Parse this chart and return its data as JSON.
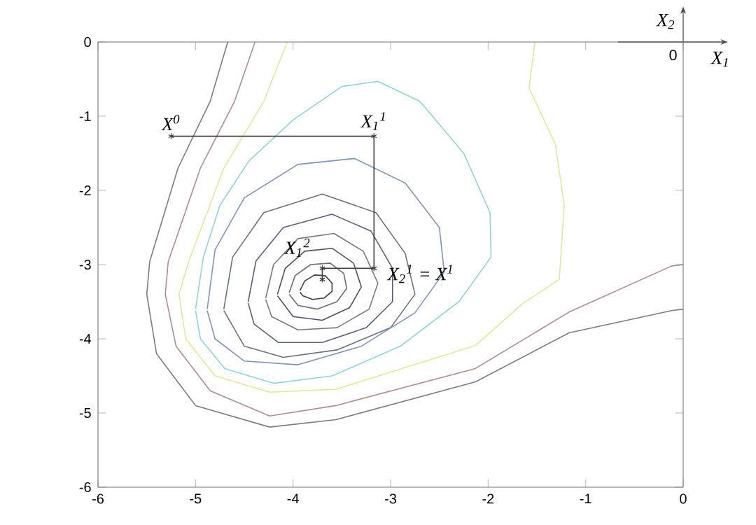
{
  "chart_data": {
    "type": "line",
    "xlabel": "X$_{1}$",
    "ylabel": "X$_{2}$",
    "xlim": [
      -6,
      0
    ],
    "ylim": [
      -6,
      0
    ],
    "xticks": [
      -6,
      -5,
      -4,
      -3,
      -2,
      -1,
      0
    ],
    "yticks": [
      -6,
      -5,
      -4,
      -3,
      -2,
      -1,
      0
    ],
    "marker": "none",
    "line_style": "solid",
    "series": [
      {
        "color": "#3c3c44",
        "x": [
          -3.93,
          -3.88,
          -3.78,
          -3.67,
          -3.6,
          -3.6,
          -3.68,
          -3.8,
          -3.9,
          -3.93
        ],
        "values": [
          -3.35,
          -3.22,
          -3.14,
          -3.15,
          -3.25,
          -3.36,
          -3.45,
          -3.47,
          -3.42,
          -3.37
        ]
      },
      {
        "color": "#6a6a72",
        "x": [
          -4.04,
          -3.98,
          -3.82,
          -3.62,
          -3.48,
          -3.45,
          -3.55,
          -3.75,
          -3.95,
          -4.04
        ],
        "values": [
          -3.38,
          -3.15,
          -3.0,
          -2.98,
          -3.12,
          -3.32,
          -3.5,
          -3.6,
          -3.55,
          -3.4
        ]
      },
      {
        "color": "#4a5266",
        "x": [
          -4.16,
          -4.08,
          -3.88,
          -3.6,
          -3.38,
          -3.3,
          -3.42,
          -3.7,
          -4.0,
          -4.16
        ],
        "values": [
          -3.4,
          -3.05,
          -2.82,
          -2.78,
          -2.98,
          -3.3,
          -3.58,
          -3.75,
          -3.7,
          -3.42
        ]
      },
      {
        "color": "#7a7a7a",
        "x": [
          -4.28,
          -4.2,
          -3.95,
          -3.58,
          -3.28,
          -3.13,
          -3.22,
          -3.55,
          -3.95,
          -4.22,
          -4.28
        ],
        "values": [
          -3.45,
          -3.0,
          -2.65,
          -2.58,
          -2.82,
          -3.25,
          -3.6,
          -3.85,
          -3.88,
          -3.7,
          -3.47
        ]
      },
      {
        "color": "#55607a",
        "x": [
          -4.46,
          -4.38,
          -4.1,
          -3.6,
          -3.2,
          -2.98,
          -2.98,
          -3.25,
          -3.7,
          -4.15,
          -4.4,
          -4.46
        ],
        "values": [
          -3.5,
          -2.95,
          -2.5,
          -2.32,
          -2.55,
          -3.05,
          -3.5,
          -3.85,
          -4.05,
          -4.05,
          -3.8,
          -3.52
        ]
      },
      {
        "color": "#6a7080",
        "x": [
          -4.71,
          -4.62,
          -4.3,
          -3.7,
          -3.15,
          -2.85,
          -2.75,
          -3.0,
          -3.55,
          -4.1,
          -4.5,
          -4.71
        ],
        "values": [
          -3.6,
          -2.9,
          -2.3,
          -2.05,
          -2.3,
          -2.85,
          -3.4,
          -3.85,
          -4.15,
          -4.25,
          -4.1,
          -3.62
        ]
      },
      {
        "color": "#7d93b8",
        "x": [
          -4.88,
          -4.8,
          -4.5,
          -3.95,
          -3.37,
          -2.85,
          -2.5,
          -2.45,
          -2.75,
          -3.3,
          -3.95,
          -4.5,
          -4.8,
          -4.88
        ],
        "values": [
          -3.6,
          -2.8,
          -2.1,
          -1.65,
          -1.57,
          -1.9,
          -2.5,
          -3.1,
          -3.65,
          -4.1,
          -4.35,
          -4.3,
          -4.0,
          -3.62
        ]
      },
      {
        "color": "#8fd4d8",
        "x": [
          -5.0,
          -4.92,
          -4.75,
          -4.45,
          -4.0,
          -3.5,
          -3.13,
          -2.7,
          -2.25,
          -1.98,
          -1.97,
          -2.3,
          -2.9,
          -3.6,
          -4.2,
          -4.7,
          -4.95,
          -5.0
        ],
        "values": [
          -3.6,
          -2.9,
          -2.2,
          -1.6,
          -1.05,
          -0.6,
          -0.53,
          -0.8,
          -1.5,
          -2.3,
          -2.9,
          -3.5,
          -4.1,
          -4.5,
          -4.6,
          -4.4,
          -4.0,
          -3.62
        ]
      },
      {
        "color": "#e6e69a",
        "x": [
          -4.06,
          -4.3,
          -4.71,
          -5.07,
          -5.17,
          -5.1,
          -4.8,
          -4.24,
          -3.56,
          -2.13,
          -1.65,
          -1.27,
          -1.22,
          -1.31,
          -1.58,
          -1.52
        ],
        "values": [
          0,
          -0.8,
          -1.7,
          -2.96,
          -3.4,
          -4.0,
          -4.5,
          -4.72,
          -4.68,
          -4.09,
          -3.53,
          -3.2,
          -2.2,
          -1.38,
          -0.62,
          0
        ]
      },
      {
        "color": "#b08c8c",
        "x": [
          -4.39,
          -4.6,
          -4.95,
          -5.28,
          -5.31,
          -5.2,
          -4.85,
          -4.24,
          -3.56,
          -2.13,
          -1.17,
          -0.12,
          0
        ],
        "values": [
          0,
          -0.8,
          -1.7,
          -2.96,
          -3.4,
          -4.1,
          -4.7,
          -5.04,
          -4.9,
          -4.4,
          -3.64,
          -3.02,
          -3.0
        ]
      },
      {
        "color": "#7a7a8a",
        "x": [
          -4.67,
          -4.85,
          -5.18,
          -5.47,
          -5.5,
          -5.4,
          -5.0,
          -4.24,
          -3.56,
          -2.13,
          -1.17,
          -0.12,
          0
        ],
        "values": [
          0,
          -0.8,
          -1.7,
          -2.96,
          -3.4,
          -4.2,
          -4.9,
          -5.19,
          -5.09,
          -4.58,
          -3.92,
          -3.62,
          -3.6
        ]
      },
      {
        "color": "#404040",
        "marker": "cross",
        "x": [
          -5.25,
          -3.17,
          -3.17,
          -3.7,
          -3.7
        ],
        "values": [
          -1.27,
          -1.27,
          -3.05,
          -3.05,
          -3.2
        ]
      }
    ],
    "annotations": [
      {
        "text": "X$^{0}$",
        "x": -5.25,
        "y": -1.27
      },
      {
        "text": "X$_{1}$$^{1}$",
        "x": -3.17,
        "y": -1.27
      },
      {
        "text": "X$_{2}$$^{1}$ = X$^{1}$",
        "x": -3.17,
        "y": -3.05
      },
      {
        "text": "X$_{1}$$^{2}$",
        "x": -3.7,
        "y": -3.05
      },
      "0"
    ]
  }
}
